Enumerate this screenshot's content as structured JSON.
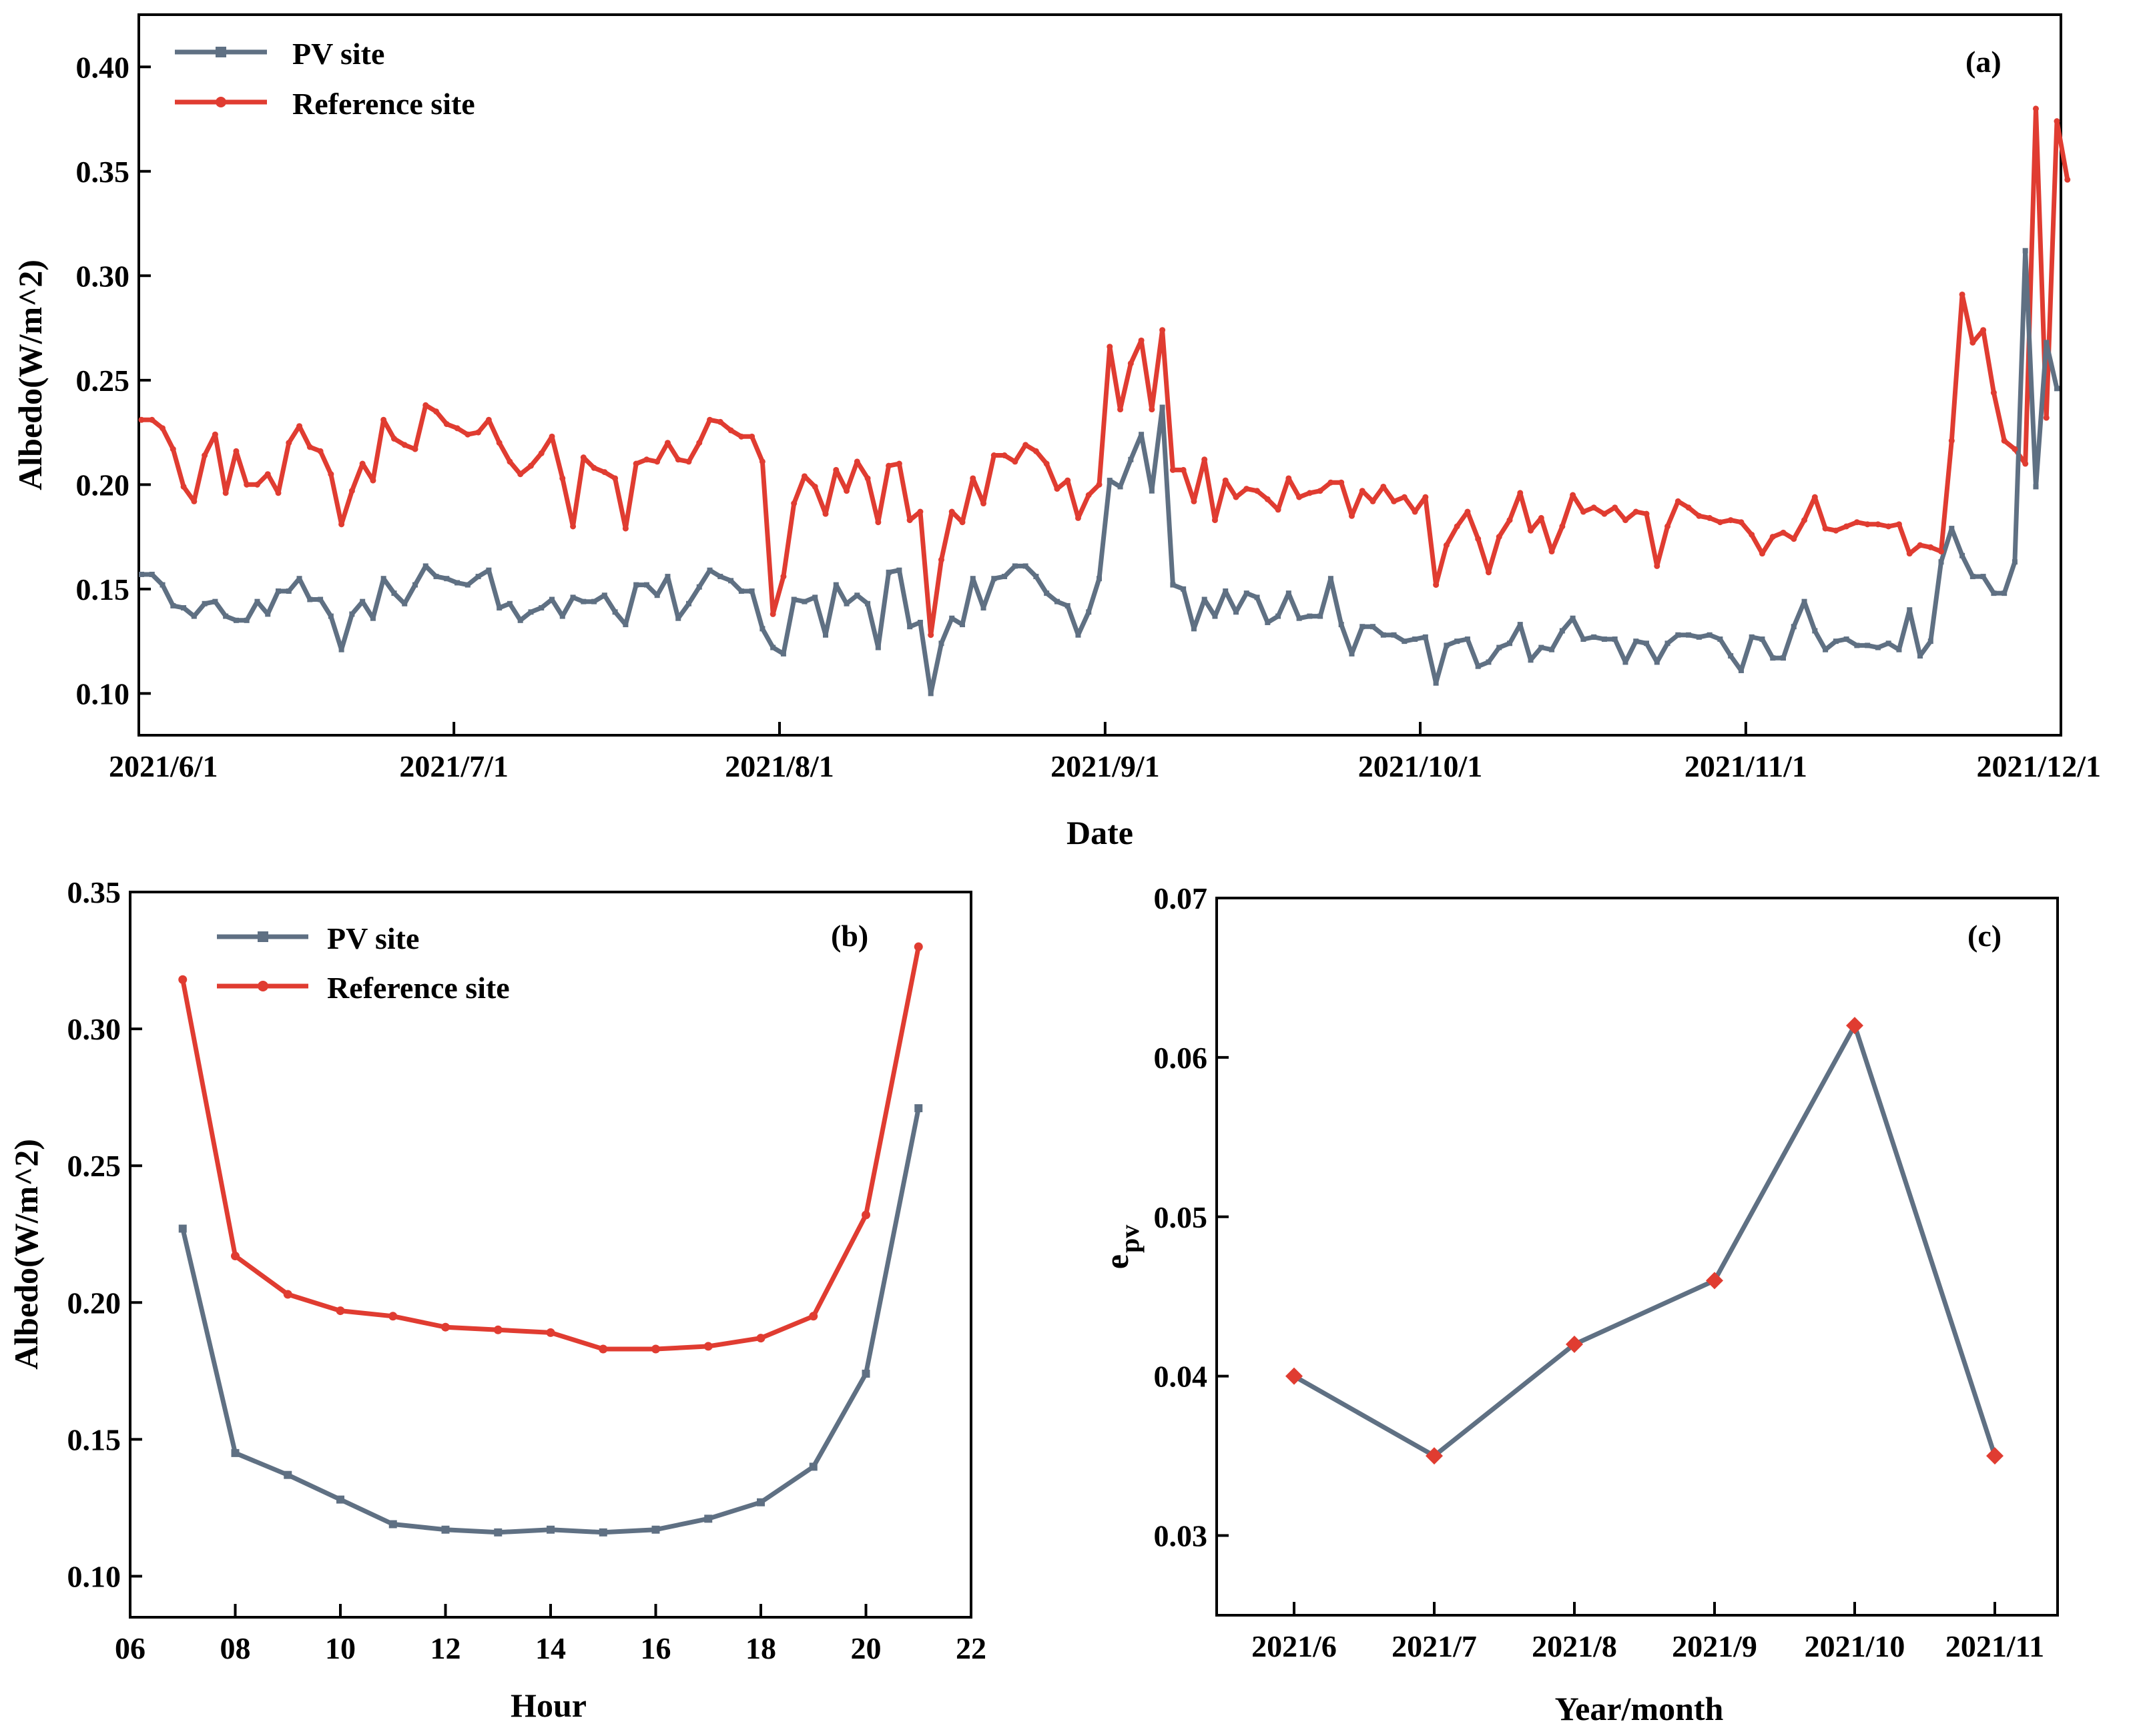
{
  "colors": {
    "pv": "#5f7083",
    "ref": "#e03c31",
    "epv_line": "#5f7083",
    "epv_marker": "#e03c31"
  },
  "chart_data": [
    {
      "panel": "(a)",
      "type": "line",
      "title": "",
      "xlabel": "Date",
      "ylabel": "Albedo(W/m^2)",
      "x_tick_labels": [
        "2021/6/1",
        "2021/7/1",
        "2021/8/1",
        "2021/9/1",
        "2021/10/1",
        "2021/11/1",
        "2021/12/1"
      ],
      "x_start": "2021/6/1",
      "x_days_total": 183,
      "y_ticks": [
        "0.10",
        "0.15",
        "0.20",
        "0.25",
        "0.30",
        "0.35",
        "0.40"
      ],
      "ylim": [
        0.08,
        0.425
      ],
      "legend": [
        "PV  site",
        "Reference  site"
      ],
      "legend_position": "top-left",
      "series": [
        {
          "name": "PV  site",
          "values": [
            0.157,
            0.157,
            0.152,
            0.142,
            0.141,
            0.137,
            0.143,
            0.144,
            0.137,
            0.135,
            0.135,
            0.144,
            0.138,
            0.149,
            0.149,
            0.155,
            0.145,
            0.145,
            0.137,
            0.121,
            0.138,
            0.144,
            0.136,
            0.155,
            0.148,
            0.143,
            0.152,
            0.161,
            0.156,
            0.155,
            0.153,
            0.152,
            0.156,
            0.159,
            0.141,
            0.143,
            0.135,
            0.139,
            0.141,
            0.145,
            0.137,
            0.146,
            0.144,
            0.144,
            0.147,
            0.139,
            0.133,
            0.152,
            0.152,
            0.147,
            0.156,
            0.136,
            0.143,
            0.151,
            0.159,
            0.156,
            0.154,
            0.149,
            0.149,
            0.131,
            0.122,
            0.119,
            0.145,
            0.144,
            0.146,
            0.128,
            0.152,
            0.143,
            0.147,
            0.143,
            0.122,
            0.158,
            0.159,
            0.132,
            0.134,
            0.1,
            0.124,
            0.136,
            0.133,
            0.155,
            0.141,
            0.155,
            0.156,
            0.161,
            0.161,
            0.156,
            0.148,
            0.144,
            0.142,
            0.128,
            0.139,
            0.155,
            0.202,
            0.199,
            0.212,
            0.224,
            0.197,
            0.237,
            0.152,
            0.15,
            0.131,
            0.145,
            0.137,
            0.149,
            0.139,
            0.148,
            0.146,
            0.134,
            0.137,
            0.148,
            0.136,
            0.137,
            0.137,
            0.155,
            0.133,
            0.119,
            0.132,
            0.132,
            0.128,
            0.128,
            0.125,
            0.126,
            0.127,
            0.105,
            0.123,
            0.125,
            0.126,
            0.113,
            0.115,
            0.122,
            0.124,
            0.133,
            0.116,
            0.122,
            0.121,
            0.13,
            0.136,
            0.126,
            0.127,
            0.126,
            0.126,
            0.115,
            0.125,
            0.124,
            0.115,
            0.124,
            0.128,
            0.128,
            0.127,
            0.128,
            0.126,
            0.118,
            0.111,
            0.127,
            0.126,
            0.117,
            0.117,
            0.132,
            0.144,
            0.13,
            0.121,
            0.125,
            0.126,
            0.123,
            0.123,
            0.122,
            0.124,
            0.121,
            0.14,
            0.118,
            0.125,
            0.163,
            0.179,
            0.166,
            0.156,
            0.156,
            0.148,
            0.148,
            0.163,
            0.312,
            0.199,
            0.268,
            0.246
          ]
        },
        {
          "name": "Reference  site",
          "values": [
            0.231,
            0.231,
            0.227,
            0.217,
            0.199,
            0.192,
            0.214,
            0.224,
            0.196,
            0.216,
            0.2,
            0.2,
            0.205,
            0.196,
            0.22,
            0.228,
            0.218,
            0.216,
            0.205,
            0.181,
            0.197,
            0.21,
            0.202,
            0.231,
            0.222,
            0.219,
            0.217,
            0.238,
            0.235,
            0.229,
            0.227,
            0.224,
            0.225,
            0.231,
            0.22,
            0.211,
            0.205,
            0.209,
            0.215,
            0.223,
            0.203,
            0.18,
            0.213,
            0.208,
            0.206,
            0.203,
            0.179,
            0.21,
            0.212,
            0.211,
            0.22,
            0.212,
            0.211,
            0.22,
            0.231,
            0.23,
            0.226,
            0.223,
            0.223,
            0.211,
            0.138,
            0.156,
            0.191,
            0.204,
            0.199,
            0.186,
            0.207,
            0.197,
            0.211,
            0.203,
            0.182,
            0.209,
            0.21,
            0.183,
            0.187,
            0.128,
            0.164,
            0.187,
            0.182,
            0.203,
            0.191,
            0.214,
            0.214,
            0.211,
            0.219,
            0.216,
            0.21,
            0.198,
            0.202,
            0.184,
            0.195,
            0.2,
            0.266,
            0.236,
            0.258,
            0.269,
            0.236,
            0.274,
            0.207,
            0.207,
            0.192,
            0.212,
            0.183,
            0.202,
            0.194,
            0.198,
            0.197,
            0.193,
            0.188,
            0.203,
            0.194,
            0.196,
            0.197,
            0.201,
            0.201,
            0.185,
            0.197,
            0.192,
            0.199,
            0.192,
            0.194,
            0.187,
            0.194,
            0.152,
            0.171,
            0.18,
            0.187,
            0.174,
            0.158,
            0.175,
            0.183,
            0.196,
            0.178,
            0.184,
            0.168,
            0.18,
            0.195,
            0.187,
            0.189,
            0.186,
            0.189,
            0.183,
            0.187,
            0.186,
            0.161,
            0.18,
            0.192,
            0.189,
            0.185,
            0.184,
            0.182,
            0.183,
            0.182,
            0.176,
            0.167,
            0.175,
            0.177,
            0.174,
            0.183,
            0.194,
            0.179,
            0.178,
            0.18,
            0.182,
            0.181,
            0.181,
            0.18,
            0.181,
            0.167,
            0.171,
            0.17,
            0.168,
            0.221,
            0.291,
            0.268,
            0.274,
            0.244,
            0.221,
            0.217,
            0.21,
            0.38,
            0.232,
            0.374,
            0.346
          ]
        }
      ]
    },
    {
      "panel": "(b)",
      "type": "line",
      "title": "",
      "xlabel": "Hour",
      "ylabel": "Albedo(W/m^2)",
      "x_tick_labels": [
        "06",
        "08",
        "10",
        "12",
        "14",
        "16",
        "18",
        "20",
        "22"
      ],
      "xlim": [
        6,
        22
      ],
      "y_ticks": [
        "0.10",
        "0.15",
        "0.20",
        "0.25",
        "0.30",
        "0.35"
      ],
      "ylim": [
        0.085,
        0.35
      ],
      "legend": [
        "PV  site",
        "Reference  site"
      ],
      "legend_position": "top-left",
      "x": [
        7,
        8,
        9,
        10,
        11,
        12,
        13,
        14,
        15,
        16,
        17,
        18,
        19,
        20,
        21
      ],
      "series": [
        {
          "name": "PV  site",
          "values": [
            0.227,
            0.145,
            0.137,
            0.128,
            0.119,
            0.117,
            0.116,
            0.117,
            0.116,
            0.117,
            0.121,
            0.127,
            0.14,
            0.174,
            0.271
          ]
        },
        {
          "name": "Reference  site",
          "values": [
            0.318,
            0.217,
            0.203,
            0.197,
            0.195,
            0.191,
            0.19,
            0.189,
            0.183,
            0.183,
            0.184,
            0.187,
            0.195,
            0.232,
            0.33
          ]
        }
      ]
    },
    {
      "panel": "(c)",
      "type": "line",
      "title": "",
      "xlabel": "Year/month",
      "ylabel_main": "e",
      "ylabel_sub": "pv",
      "categories": [
        "2021/6",
        "2021/7",
        "2021/8",
        "2021/9",
        "2021/10",
        "2021/11"
      ],
      "y_ticks": [
        "0.03",
        "0.04",
        "0.05",
        "0.06",
        "0.07"
      ],
      "ylim": [
        0.025,
        0.07
      ],
      "series": [
        {
          "name": "epv",
          "values": [
            0.04,
            0.035,
            0.042,
            0.046,
            0.062,
            0.035
          ]
        }
      ]
    }
  ]
}
